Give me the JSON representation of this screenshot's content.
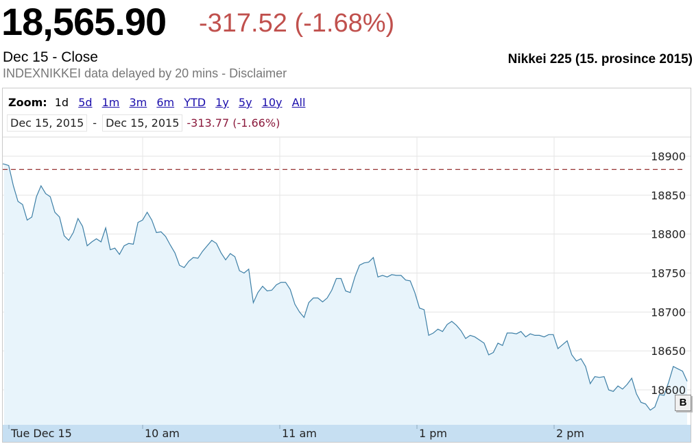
{
  "quote": {
    "price": "18,565.90",
    "change": "-317.52 (-1.68%)",
    "close_label": "Dec 15 - Close",
    "delayed_note": "INDEXNIKKEI data delayed by 20 mins - Disclaimer"
  },
  "caption": "Nikkei 225 (15. prosince 2015)",
  "toolbar": {
    "zoom_label": "Zoom:",
    "zoom_options": [
      "1d",
      "5d",
      "1m",
      "3m",
      "6m",
      "YTD",
      "1y",
      "5y",
      "10y",
      "All"
    ],
    "active_zoom": "1d",
    "range_start": "Dec 15, 2015",
    "range_sep": "-",
    "range_end": "Dec 15, 2015",
    "range_change": "-313.77 (-1.66%)"
  },
  "colors": {
    "line": "#3d7fa6",
    "fill": "#e8f4fb",
    "prev_close": "#8b1a1a",
    "change_negative": "#c0504d"
  },
  "marker_label": "B",
  "chart_data": {
    "type": "area",
    "title": "",
    "xlabel": "",
    "ylabel": "",
    "x_ticks": [
      "Tue Dec 15",
      "10 am",
      "11 am",
      "1 pm",
      "2 pm"
    ],
    "y_ticks": [
      18600,
      18650,
      18700,
      18750,
      18800,
      18850,
      18900
    ],
    "ylim": [
      18560,
      18920
    ],
    "previous_close": 18883,
    "y_axis_position": "right",
    "grid": true,
    "series": [
      {
        "values": [
          18890,
          18888,
          18862,
          18842,
          18838,
          18818,
          18822,
          18848,
          18862,
          18852,
          18848,
          18828,
          18822,
          18798,
          18792,
          18802,
          18820,
          18810,
          18785,
          18790,
          18794,
          18790,
          18808,
          18780,
          18782,
          18774,
          18785,
          18788,
          18787,
          18815,
          18818,
          18828,
          18818,
          18802,
          18803,
          18797,
          18786,
          18776,
          18760,
          18757,
          18765,
          18770,
          18769,
          18778,
          18785,
          18792,
          18788,
          18776,
          18767,
          18775,
          18771,
          18753,
          18750,
          18755,
          18712,
          18725,
          18733,
          18727,
          18728,
          18735,
          18738,
          18738,
          18729,
          18710,
          18700,
          18693,
          18712,
          18718,
          18718,
          18713,
          18718,
          18728,
          18743,
          18743,
          18727,
          18725,
          18745,
          18760,
          18763,
          18764,
          18770,
          18745,
          18747,
          18745,
          18748,
          18747,
          18747,
          18741,
          18740,
          18725,
          18705,
          18703,
          18670,
          18673,
          18678,
          18675,
          18684,
          18688,
          18683,
          18676,
          18666,
          18670,
          18668,
          18664,
          18660,
          18645,
          18648,
          18660,
          18657,
          18673,
          18673,
          18672,
          18675,
          18668,
          18672,
          18670,
          18670,
          18668,
          18671,
          18671,
          18653,
          18658,
          18663,
          18645,
          18637,
          18640,
          18630,
          18608,
          18617,
          18616,
          18617,
          18600,
          18598,
          18605,
          18601,
          18607,
          18615,
          18595,
          18584,
          18582,
          18574,
          18578,
          18594,
          18593,
          18610,
          18630,
          18627,
          18624,
          18611
        ]
      }
    ]
  }
}
